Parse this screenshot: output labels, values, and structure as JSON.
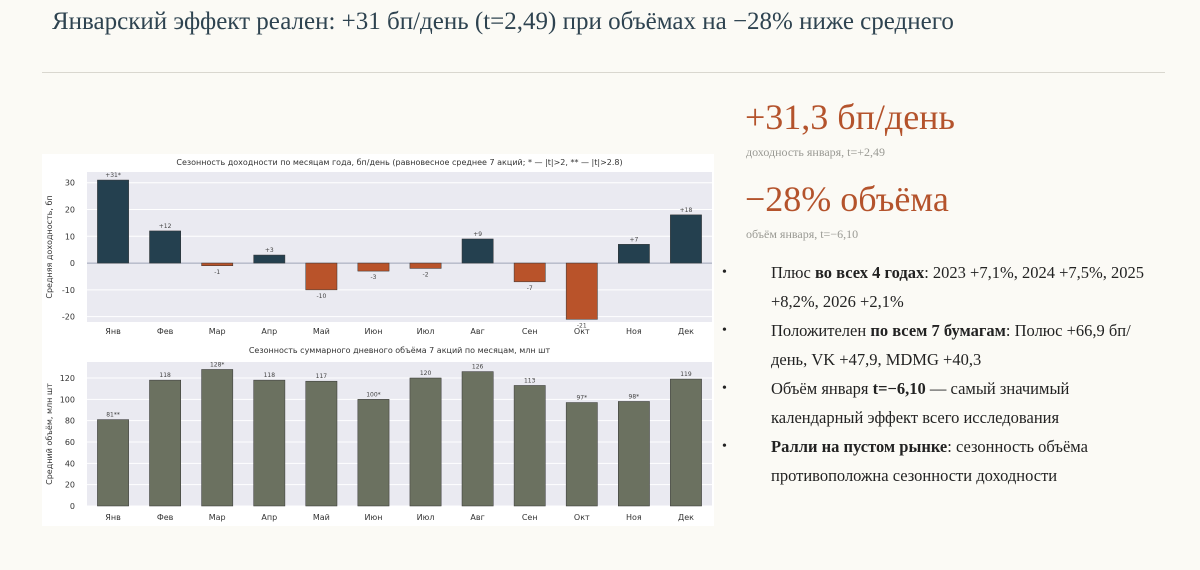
{
  "slide": {
    "title": "Январский эффект реален: +31 бп/день (t=2,49) при объёмах на −28% ниже среднего"
  },
  "stats": [
    {
      "value": "+31,3 бп/день",
      "caption": "доходность января, t=+2,49"
    },
    {
      "value": "−28% объёма",
      "caption": "объём января, t=−6,10"
    }
  ],
  "bullets": [
    {
      "bold": "Плюс во всех 4 годах",
      "bold_prefix": "Плюс ",
      "bold_part": "во всех 4 годах",
      "text": ": 2023 +7,1%, 2024 +7,5%, 2025 +8,2%, 2026 +2,1%"
    },
    {
      "bold_prefix": "Положителен ",
      "bold_part": "по всем 7 бумагам",
      "text": ": Полюс +66,9 бп/день, VK +47,9, MDMG +40,3"
    },
    {
      "bold_prefix": "Объём января ",
      "bold_part": "t=−6,10",
      "text": " — самый значимый календарный эффект всего исследования"
    },
    {
      "bold_prefix": "",
      "bold_part": "Ралли на пустом рынке",
      "text": ": сезонность объёма противоположна сезонности доходности"
    }
  ],
  "colors": {
    "positive": "#24404f",
    "negative": "#b9532a",
    "volume": "#6b7160",
    "plot_bg": "#eaeaf1",
    "accent": "#b4532c"
  },
  "chart_data": [
    {
      "type": "bar",
      "title": "Сезонность доходности по месяцам года, бп/день (равновесное среднее 7 акций; * — |t|>2, ** — |t|>2.8)",
      "ylabel": "Средняя доходность, бп",
      "xlabel": "",
      "categories": [
        "Янв",
        "Фев",
        "Мар",
        "Апр",
        "Май",
        "Июн",
        "Июл",
        "Авг",
        "Сен",
        "Окт",
        "Ноя",
        "Дек"
      ],
      "values": [
        31,
        12,
        -1,
        3,
        -10,
        -3,
        -2,
        9,
        -7,
        -21,
        7,
        18
      ],
      "labels": [
        "+31*",
        "+12",
        "-1",
        "+3",
        "-10",
        "-3",
        "-2",
        "+9",
        "-7",
        "-21",
        "+7",
        "+18"
      ],
      "ylim": [
        -22,
        34
      ],
      "yticks": [
        -20,
        -10,
        0,
        10,
        20,
        30
      ],
      "grid": true
    },
    {
      "type": "bar",
      "title": "Сезонность суммарного дневного объёма 7 акций по месяцам, млн шт",
      "ylabel": "Средний объём, млн шт",
      "xlabel": "",
      "categories": [
        "Янв",
        "Фев",
        "Мар",
        "Апр",
        "Май",
        "Июн",
        "Июл",
        "Авг",
        "Сен",
        "Окт",
        "Ноя",
        "Дек"
      ],
      "values": [
        81,
        118,
        128,
        118,
        117,
        100,
        120,
        126,
        113,
        97,
        98,
        119
      ],
      "labels": [
        "81**",
        "118",
        "128*",
        "118",
        "117",
        "100*",
        "120",
        "126",
        "113",
        "97*",
        "98*",
        "119"
      ],
      "ylim": [
        0,
        135
      ],
      "yticks": [
        0,
        20,
        40,
        60,
        80,
        100,
        120
      ],
      "grid": true
    }
  ]
}
